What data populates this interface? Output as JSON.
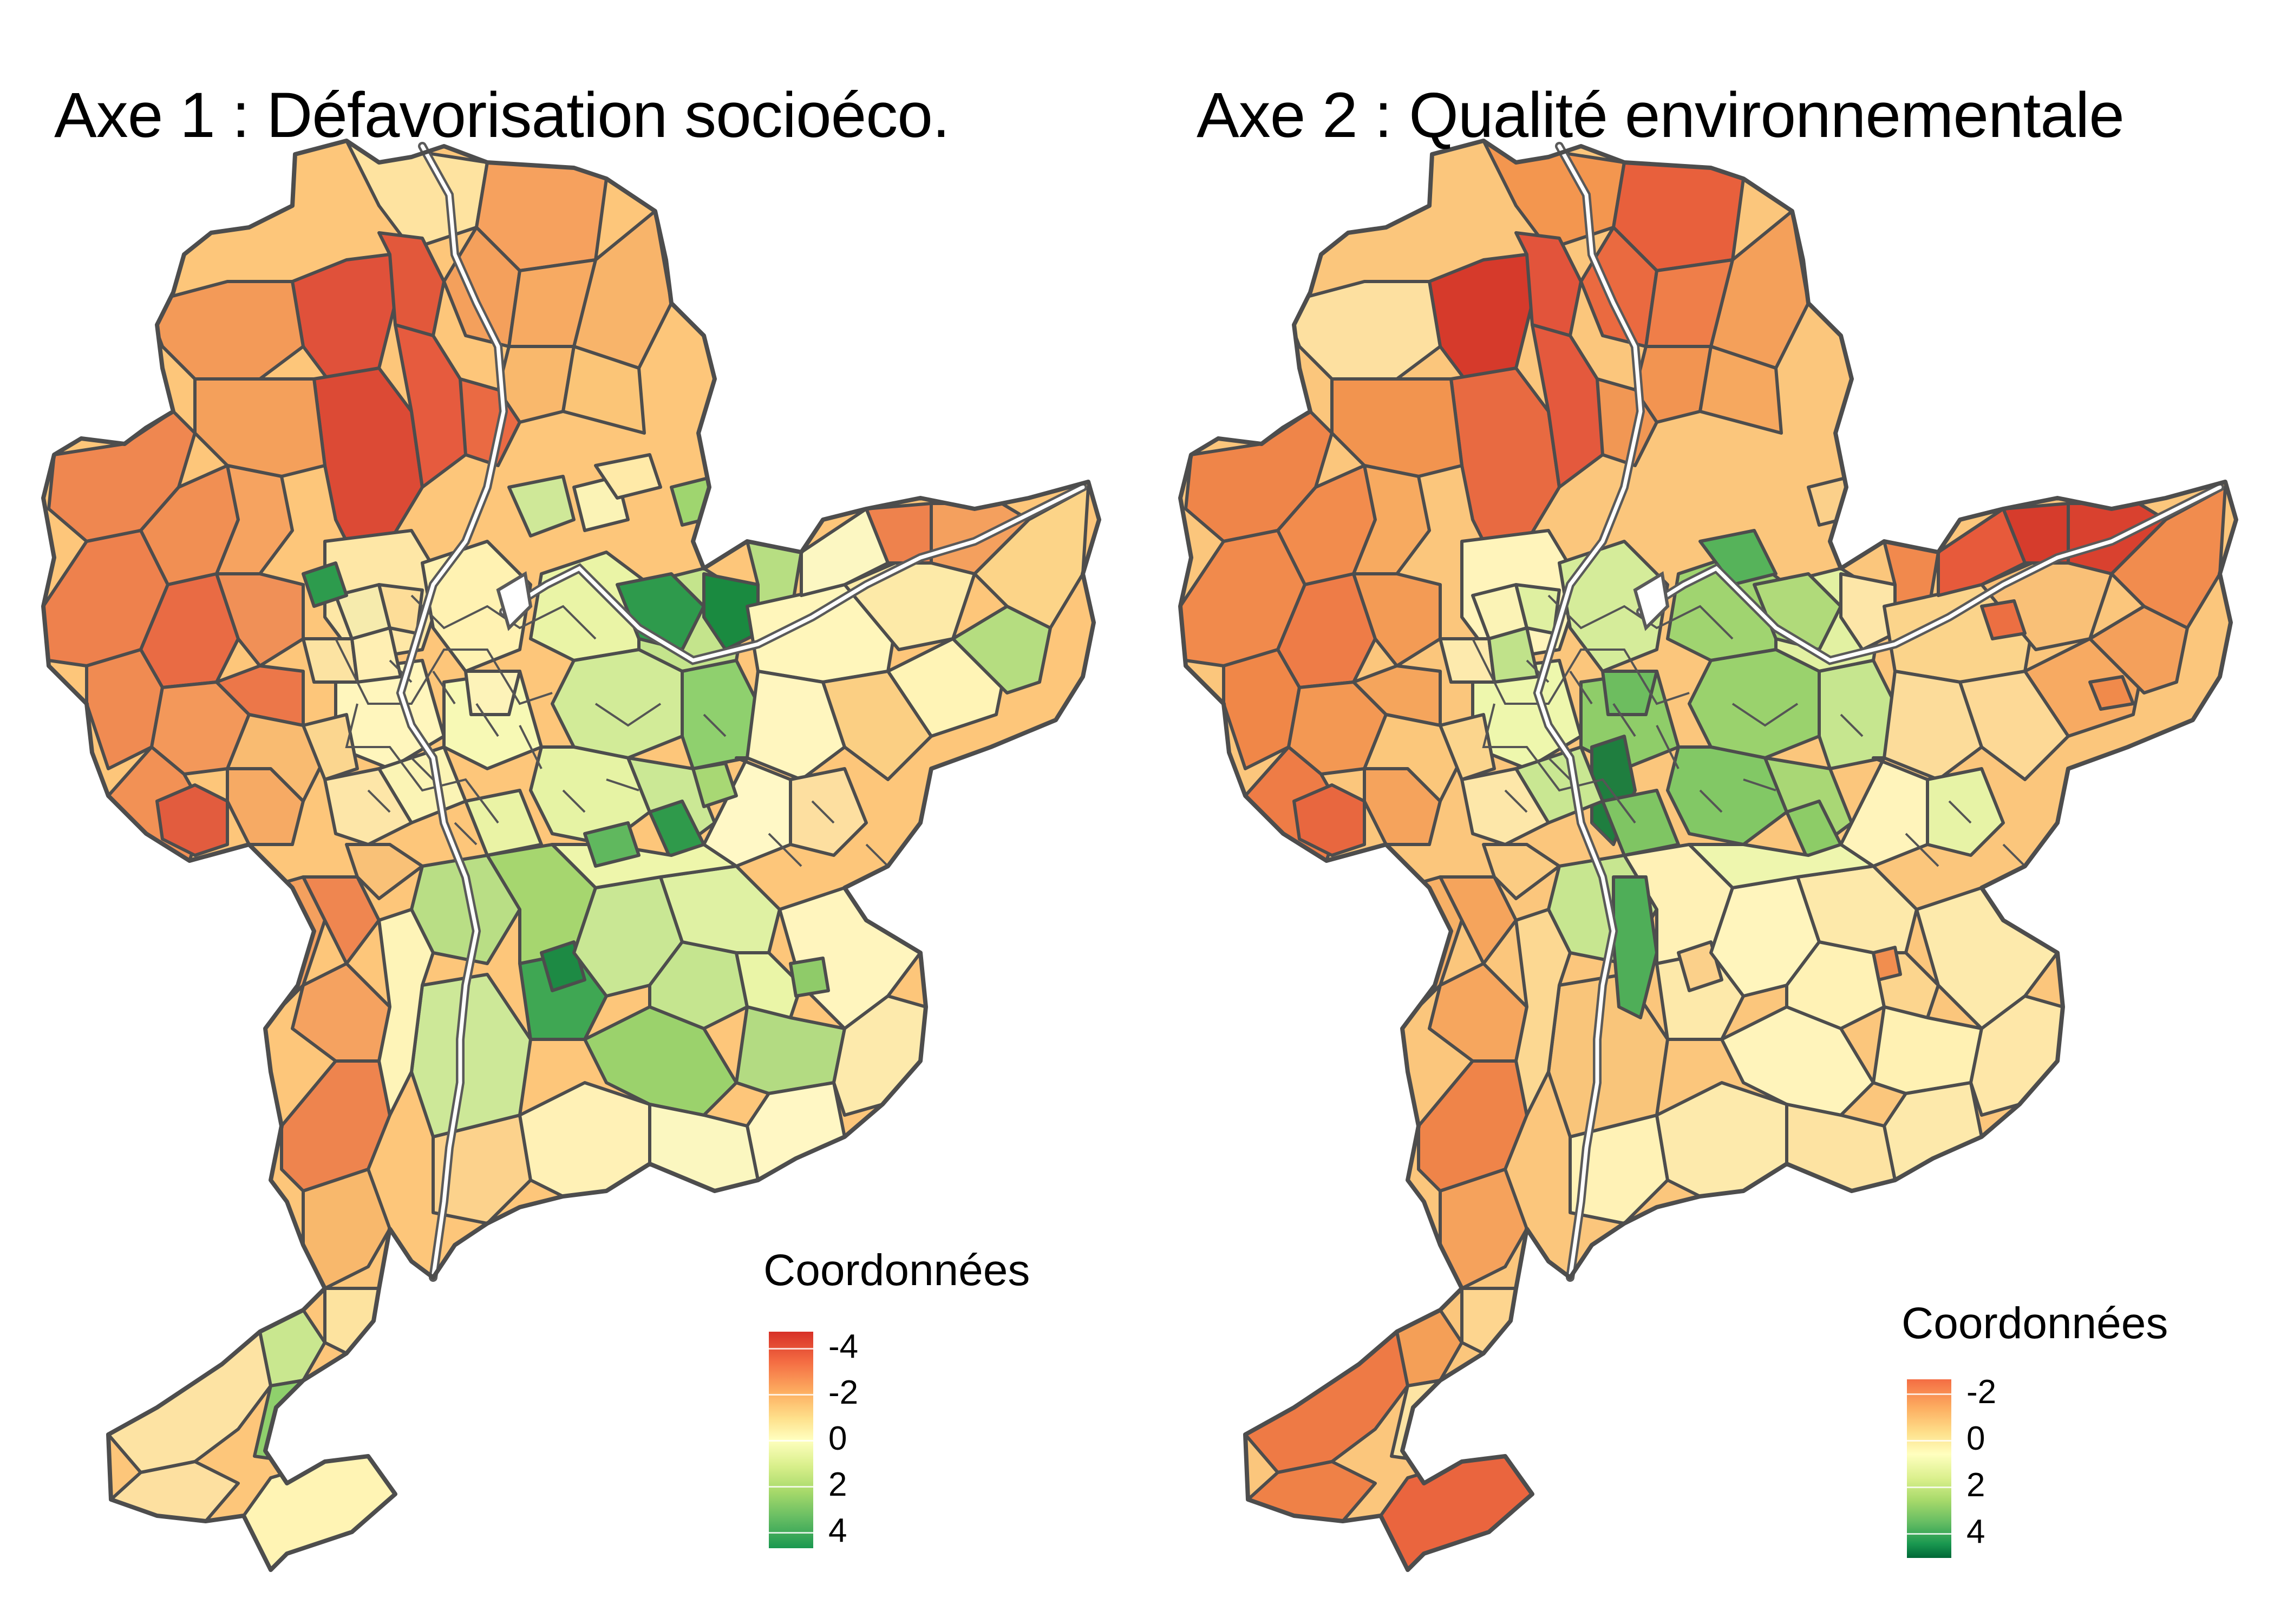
{
  "panels": [
    {
      "title": "Axe 1 : Défavorisation socioéco.",
      "legend": {
        "title": "Coordonnées",
        "ticks": [
          "-4",
          "-2",
          "0",
          "2",
          "4"
        ],
        "colors": [
          "#d73027",
          "#f46d43",
          "#fdae61",
          "#fee08b",
          "#ffffbf",
          "#d9ef8b",
          "#a6d96a",
          "#66bd63",
          "#1a9850"
        ]
      }
    },
    {
      "title": "Axe 2 : Qualité environnementale",
      "legend": {
        "title": "Coordonnées",
        "ticks": [
          "-2",
          "0",
          "2",
          "4"
        ],
        "colors": [
          "#f46d43",
          "#fdae61",
          "#fee08b",
          "#ffffbf",
          "#d9ef8b",
          "#a6d96a",
          "#66bd63",
          "#1a9850",
          "#006837"
        ]
      }
    }
  ]
}
